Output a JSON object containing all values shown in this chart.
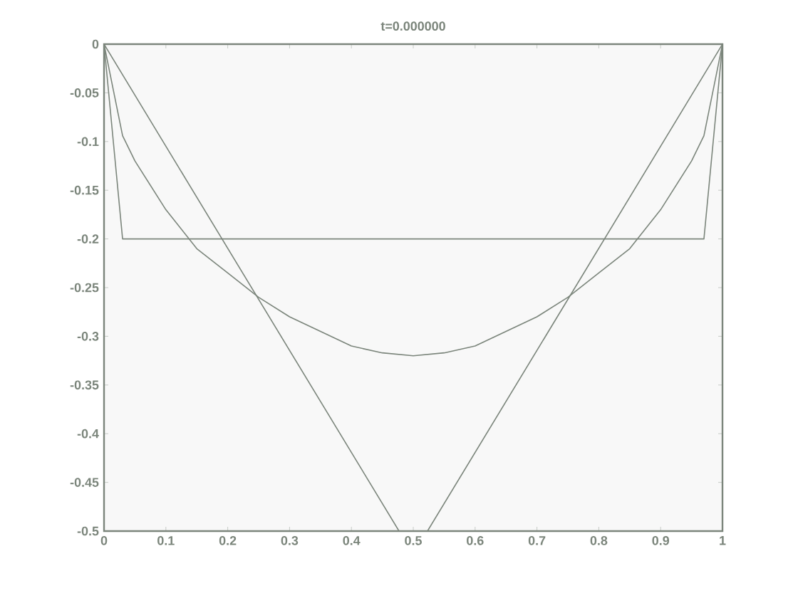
{
  "chart_data": {
    "type": "line",
    "title": "t=0.000000",
    "xlim": [
      0,
      1
    ],
    "ylim": [
      -0.5,
      0
    ],
    "xticks": [
      0,
      0.1,
      0.2,
      0.3,
      0.4,
      0.5,
      0.6,
      0.7,
      0.8,
      0.9,
      1
    ],
    "yticks": [
      -0.5,
      -0.45,
      -0.4,
      -0.35,
      -0.3,
      -0.25,
      -0.2,
      -0.15,
      -0.1,
      -0.05,
      0
    ],
    "grid": false,
    "marker": "none",
    "line_style": "solid",
    "series": [
      {
        "color": "#7b857b",
        "x": [
          0,
          0.03,
          0.97,
          1
        ],
        "values": [
          0,
          -0.2,
          -0.2,
          0
        ]
      },
      {
        "color": "#7b857b",
        "x": [
          0,
          0.477,
          0.5,
          0.523,
          1
        ],
        "values": [
          0,
          -0.5,
          null,
          -0.5,
          0
        ]
      },
      {
        "color": "#7b857b",
        "x": [
          0,
          0.03,
          0.05,
          0.1,
          0.15,
          0.2,
          0.25,
          0.3,
          0.35,
          0.4,
          0.45,
          0.5,
          0.55,
          0.6,
          0.65,
          0.7,
          0.75,
          0.8,
          0.85,
          0.9,
          0.95,
          0.97,
          1
        ],
        "values": [
          0,
          -0.094,
          -0.12,
          -0.17,
          -0.21,
          -0.235,
          -0.26,
          -0.28,
          -0.295,
          -0.31,
          -0.317,
          -0.32,
          -0.317,
          -0.31,
          -0.295,
          -0.28,
          -0.26,
          -0.235,
          -0.21,
          -0.17,
          -0.12,
          -0.094,
          0
        ]
      }
    ]
  }
}
